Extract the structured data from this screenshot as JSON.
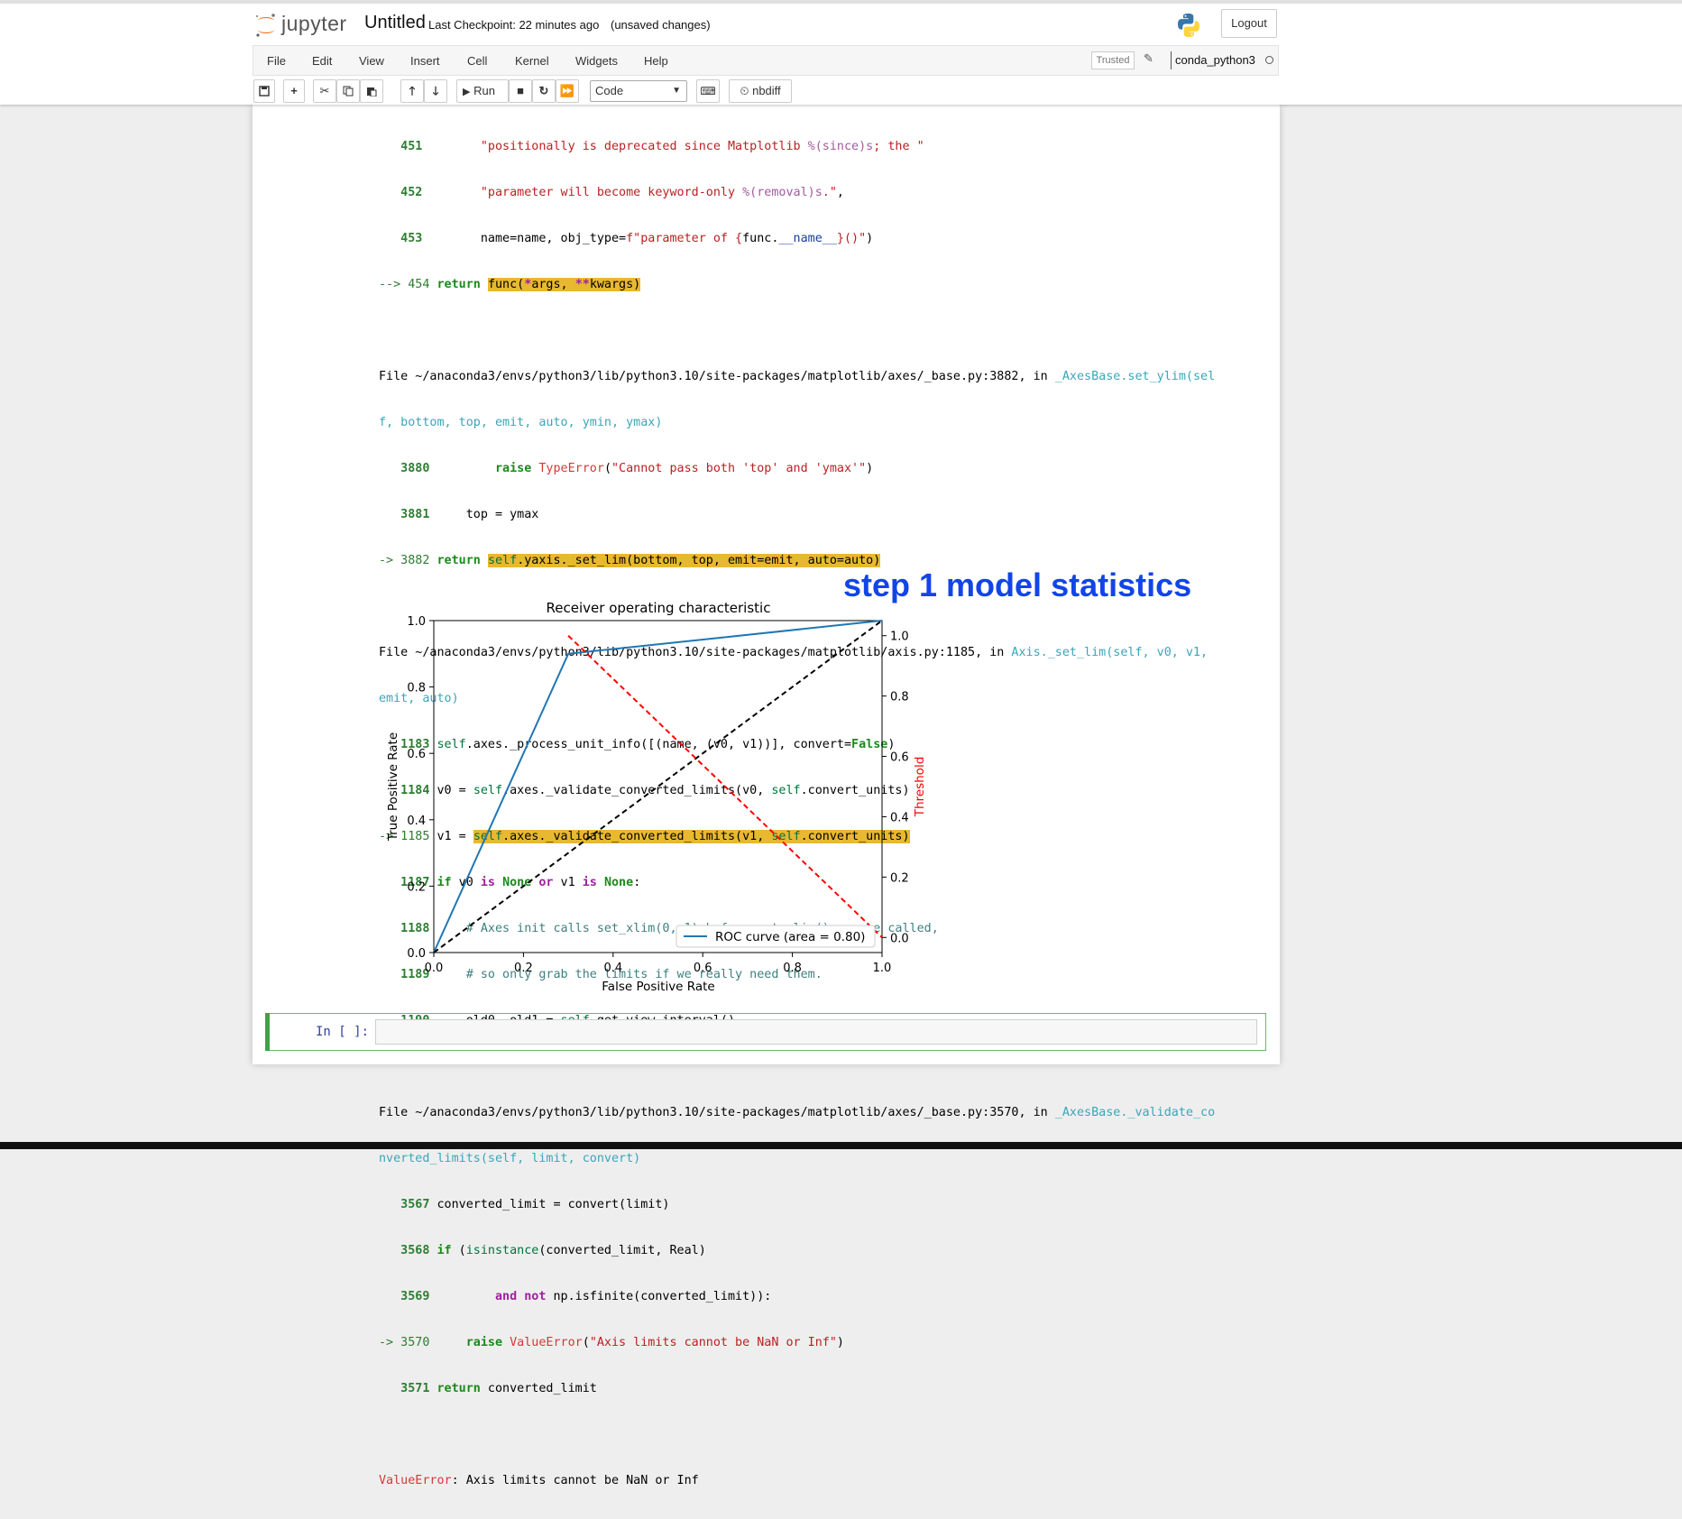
{
  "header": {
    "logo_text": "jupyter",
    "notebook_title": "Untitled",
    "checkpoint": "Last Checkpoint: 22 minutes ago",
    "unsaved": "(unsaved changes)",
    "logout_label": "Logout"
  },
  "menubar": {
    "items": [
      "File",
      "Edit",
      "View",
      "Insert",
      "Cell",
      "Kernel",
      "Widgets",
      "Help"
    ],
    "trusted_label": "Trusted",
    "kernel_name": "conda_python3"
  },
  "toolbar": {
    "run_label": "Run",
    "cell_type": "Code",
    "nbdiff_label": "nbdiff"
  },
  "traceback": {
    "block1": [
      {
        "num": "451",
        "code": "\"positionally is deprecated since Matplotlib %(since)s; the \""
      },
      {
        "num": "452",
        "code": "\"parameter will become keyword-only %(removal)s.\","
      },
      {
        "num": "453",
        "code": "name=name, obj_type=f\"parameter of {func.__name__}()\")"
      },
      {
        "num": "--> 454",
        "code": "return func(*args, **kwargs)"
      }
    ],
    "file2_path": "File ~/anaconda3/envs/python3/lib/python3.10/site-packages/matplotlib/axes/_base.py:3882, in ",
    "file2_func_a": "_AxesBase.set_ylim(sel",
    "file2_func_b": "f, bottom, top, emit, auto, ymin, ymax)",
    "block2": [
      {
        "num": "3880",
        "code": "raise TypeError(\"Cannot pass both 'top' and 'ymax'\")"
      },
      {
        "num": "3881",
        "code": "top = ymax"
      },
      {
        "num": "-> 3882",
        "code": "return self.yaxis._set_lim(bottom, top, emit=emit, auto=auto)"
      }
    ],
    "file3_path": "File ~/anaconda3/envs/python3/lib/python3.10/site-packages/matplotlib/axis.py:1185, in ",
    "file3_func_a": "Axis._set_lim(self, v0, v1,",
    "file3_func_b": "emit, auto)",
    "block3": [
      {
        "num": "1183",
        "code": "self.axes._process_unit_info([(name, (v0, v1))], convert=False)"
      },
      {
        "num": "1184",
        "code": "v0 = self.axes._validate_converted_limits(v0, self.convert_units)"
      },
      {
        "num": "-> 1185",
        "code": "v1 = self.axes._validate_converted_limits(v1, self.convert_units)"
      },
      {
        "num": "1187",
        "code": "if v0 is None or v1 is None:"
      },
      {
        "num": "1188",
        "code": "# Axes init calls set_xlim(0, 1) before get_xlim() can be called,"
      },
      {
        "num": "1189",
        "code": "# so only grab the limits if we really need them."
      },
      {
        "num": "1190",
        "code": "old0, old1 = self.get_view_interval()"
      }
    ],
    "file4_path": "File ~/anaconda3/envs/python3/lib/python3.10/site-packages/matplotlib/axes/_base.py:3570, in ",
    "file4_func_a": "_AxesBase._validate_co",
    "file4_func_b": "nverted_limits(self, limit, convert)",
    "block4": [
      {
        "num": "3567",
        "code": "converted_limit = convert(limit)"
      },
      {
        "num": "3568",
        "code": "if (isinstance(converted_limit, Real)"
      },
      {
        "num": "3569",
        "code": "and not np.isfinite(converted_limit)):"
      },
      {
        "num": "-> 3570",
        "code": "raise ValueError(\"Axis limits cannot be NaN or Inf\")"
      },
      {
        "num": "3571",
        "code": "return converted_limit"
      }
    ],
    "error_name": "ValueError",
    "error_msg": ": Axis limits cannot be NaN or Inf"
  },
  "overlay_text": "step 1 model statistics",
  "chart_data": {
    "type": "line",
    "title": "Receiver operating characteristic",
    "xlabel": "False Positive Rate",
    "ylabel": "True Positive Rate",
    "y2label": "Threshold",
    "xlim": [
      0,
      1
    ],
    "ylim": [
      0,
      1.0
    ],
    "y2lim": [
      -0.05,
      1.05
    ],
    "xticks": [
      "0.0",
      "0.2",
      "0.4",
      "0.6",
      "0.8",
      "1.0"
    ],
    "yticks": [
      "0.0",
      "0.2",
      "0.4",
      "0.6",
      "0.8",
      "1.0"
    ],
    "y2ticks": [
      "0.0",
      "0.2",
      "0.4",
      "0.6",
      "0.8",
      "1.0"
    ],
    "series": [
      {
        "name": "ROC curve (area = 0.80)",
        "color": "#1f77b4",
        "axis": "left",
        "style": "solid",
        "x": [
          0.0,
          0.3,
          1.0
        ],
        "y": [
          0.0,
          0.9,
          1.0
        ]
      },
      {
        "color": "#000000",
        "axis": "left",
        "style": "dashed",
        "x": [
          0.0,
          1.0
        ],
        "y": [
          0.0,
          1.0
        ]
      },
      {
        "color": "#ff0000",
        "axis": "right",
        "style": "dashed",
        "x": [
          0.3,
          1.0
        ],
        "y": [
          1.0,
          0.0
        ]
      }
    ],
    "legend_loc": "lower right"
  },
  "input_cell": {
    "prompt": "In [ ]:"
  }
}
